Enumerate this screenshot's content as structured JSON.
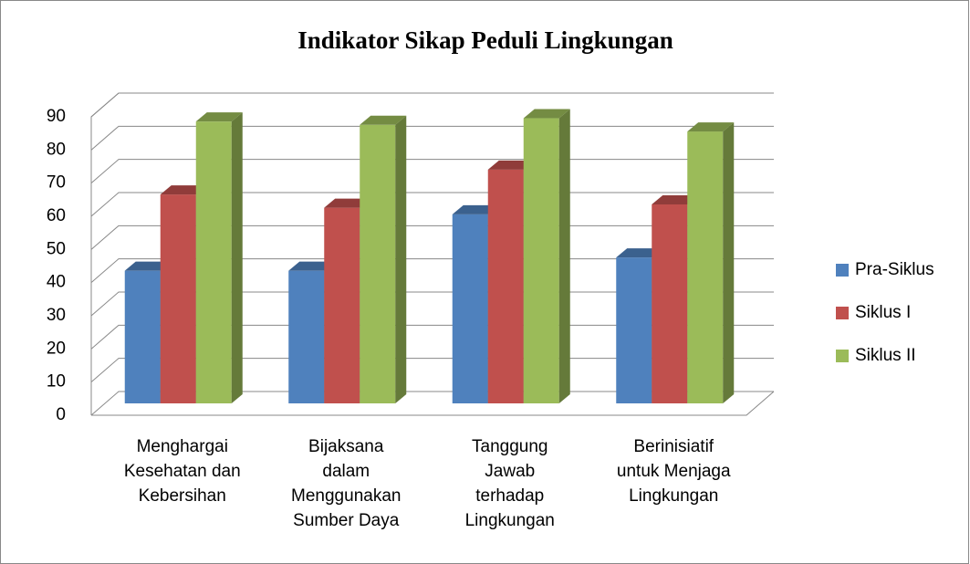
{
  "chart_data": {
    "type": "bar3d",
    "title": "Indikator Sikap Peduli Lingkungan",
    "categories": [
      "Menghargai\nKesehatan dan\nKebersihan",
      "Bijaksana\ndalam\nMenggunakan\nSumber Daya",
      "Tanggung\nJawab\nterhadap\nLingkungan",
      "Berinisiatif\nuntuk Menjaga\nLingkungan"
    ],
    "series": [
      {
        "name": "Pra-Siklus",
        "color": "#4f81bd",
        "values": [
          40,
          40,
          57,
          44
        ]
      },
      {
        "name": "Siklus I",
        "color": "#c0504d",
        "values": [
          63,
          59,
          70.5,
          60
        ]
      },
      {
        "name": "Siklus II",
        "color": "#9bbb59",
        "values": [
          85,
          84,
          86,
          82
        ]
      }
    ],
    "ylim": [
      0,
      90
    ],
    "yticks": [
      0,
      10,
      20,
      30,
      40,
      50,
      60,
      70,
      80,
      90
    ],
    "grid": true,
    "legend": "right"
  }
}
